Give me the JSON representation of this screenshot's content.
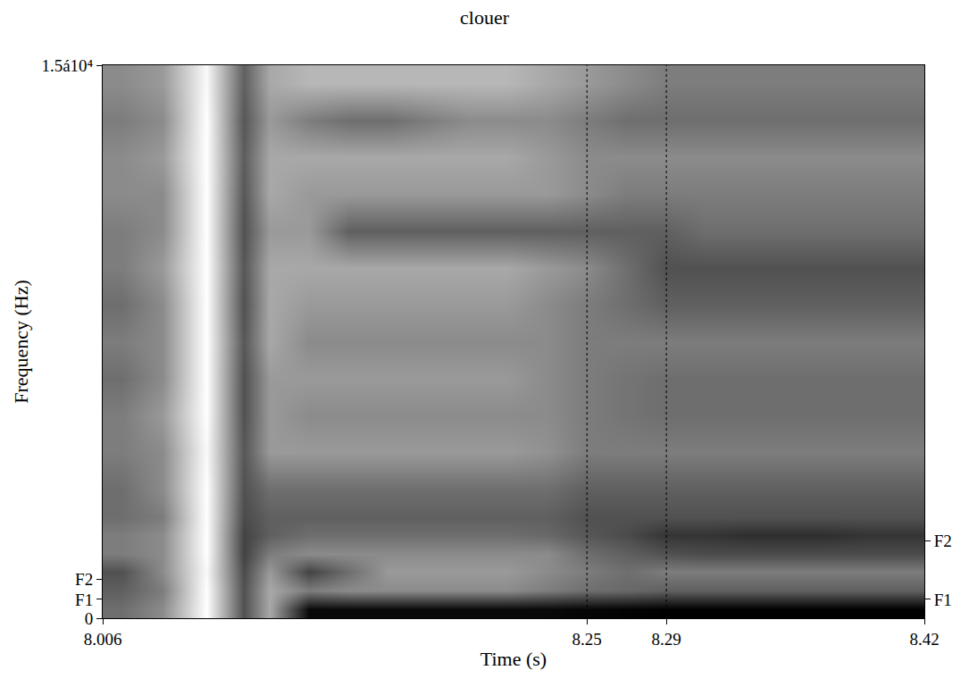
{
  "chart_data": {
    "type": "heatmap",
    "title": "clouer",
    "x_label": "Time (s)",
    "y_label": "Frequency (Hz)",
    "xlim": [
      8.006,
      8.42
    ],
    "xticks": [
      8.006,
      8.25,
      8.29,
      8.42
    ],
    "ylim": [
      0,
      15000
    ],
    "yticks": [
      0,
      {
        "value": 510,
        "label": "F1"
      },
      {
        "value": 1050,
        "label": "F2"
      },
      {
        "value": 15000,
        "label": "1.5á10⁴"
      }
    ],
    "y2lim": [
      0,
      15000
    ],
    "y2ticks": [
      {
        "value": 510,
        "label": "F1"
      },
      {
        "value": 2100,
        "label": "F2"
      }
    ],
    "boundaries": [
      8.25,
      8.29
    ],
    "x": [
      8.016,
      8.036,
      8.058,
      8.077,
      8.09,
      8.11,
      8.13,
      8.15,
      8.17,
      8.19,
      8.21,
      8.23,
      8.25,
      8.27,
      8.29,
      8.31,
      8.33,
      8.35,
      8.37,
      8.39,
      8.41
    ],
    "y": [
      250,
      750,
      1250,
      1750,
      2250,
      2750,
      3500,
      4500,
      5500,
      6500,
      7500,
      8500,
      9500,
      10500,
      11500,
      12500,
      13500,
      14500
    ],
    "cells": [
      [
        60,
        50,
        10,
        70,
        40,
        95,
        95,
        95,
        95,
        95,
        95,
        95,
        96,
        97,
        98,
        98,
        98,
        98,
        98,
        98,
        98
      ],
      [
        65,
        55,
        10,
        70,
        40,
        55,
        50,
        50,
        50,
        50,
        50,
        55,
        60,
        62,
        65,
        65,
        65,
        65,
        65,
        65,
        65
      ],
      [
        70,
        50,
        12,
        72,
        45,
        75,
        60,
        45,
        45,
        45,
        45,
        50,
        55,
        60,
        55,
        55,
        55,
        55,
        55,
        55,
        55
      ],
      [
        55,
        50,
        10,
        75,
        55,
        50,
        50,
        50,
        50,
        50,
        50,
        50,
        60,
        65,
        70,
        72,
        72,
        72,
        72,
        72,
        72
      ],
      [
        55,
        50,
        10,
        75,
        65,
        60,
        60,
        60,
        60,
        60,
        60,
        62,
        68,
        72,
        80,
        80,
        82,
        82,
        82,
        80,
        80
      ],
      [
        60,
        55,
        10,
        72,
        65,
        65,
        65,
        65,
        65,
        65,
        65,
        65,
        70,
        70,
        70,
        70,
        70,
        70,
        70,
        70,
        70
      ],
      [
        60,
        50,
        10,
        70,
        60,
        60,
        60,
        60,
        60,
        60,
        60,
        60,
        65,
        65,
        65,
        65,
        65,
        65,
        65,
        65,
        65
      ],
      [
        55,
        50,
        12,
        68,
        45,
        45,
        45,
        45,
        45,
        45,
        45,
        48,
        55,
        55,
        55,
        55,
        55,
        55,
        55,
        55,
        55
      ],
      [
        55,
        45,
        10,
        70,
        45,
        50,
        50,
        50,
        50,
        50,
        50,
        50,
        55,
        58,
        60,
        60,
        60,
        60,
        60,
        60,
        60
      ],
      [
        60,
        50,
        10,
        70,
        45,
        45,
        45,
        45,
        45,
        45,
        45,
        50,
        55,
        58,
        60,
        60,
        60,
        60,
        60,
        60,
        60
      ],
      [
        55,
        50,
        10,
        68,
        40,
        50,
        50,
        50,
        50,
        50,
        50,
        50,
        55,
        55,
        55,
        55,
        55,
        55,
        55,
        55,
        55
      ],
      [
        60,
        50,
        10,
        70,
        40,
        45,
        45,
        45,
        45,
        45,
        45,
        50,
        55,
        60,
        65,
        65,
        65,
        65,
        65,
        65,
        65
      ],
      [
        55,
        45,
        10,
        68,
        40,
        40,
        40,
        40,
        40,
        40,
        40,
        45,
        50,
        60,
        70,
        70,
        70,
        70,
        70,
        70,
        70
      ],
      [
        55,
        50,
        10,
        70,
        45,
        45,
        65,
        65,
        65,
        65,
        65,
        65,
        65,
        65,
        65,
        60,
        60,
        60,
        60,
        60,
        60
      ],
      [
        50,
        50,
        10,
        68,
        40,
        45,
        45,
        45,
        45,
        45,
        45,
        45,
        50,
        55,
        55,
        55,
        55,
        55,
        55,
        55,
        55
      ],
      [
        50,
        45,
        10,
        66,
        40,
        40,
        40,
        40,
        40,
        40,
        40,
        45,
        50,
        50,
        50,
        50,
        50,
        50,
        50,
        50,
        50
      ],
      [
        55,
        50,
        10,
        68,
        45,
        55,
        60,
        60,
        55,
        50,
        50,
        50,
        55,
        60,
        60,
        60,
        60,
        60,
        60,
        60,
        60
      ],
      [
        50,
        45,
        12,
        65,
        40,
        35,
        35,
        35,
        35,
        35,
        35,
        40,
        45,
        50,
        55,
        55,
        55,
        55,
        55,
        55,
        55
      ]
    ]
  }
}
